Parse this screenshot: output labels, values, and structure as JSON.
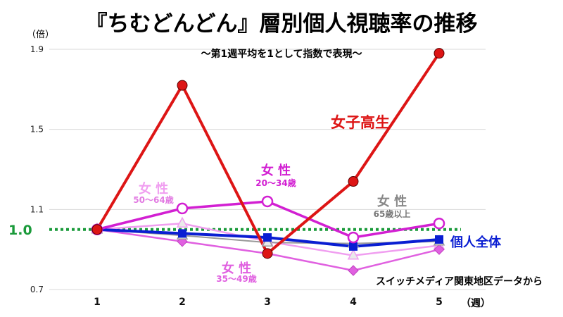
{
  "title": "『ちむどんどん』層別個人視聴率の推移",
  "subtitle": "～第1週平均を1として指数で表現～",
  "y_unit": "（倍）",
  "x_unit": "（週）",
  "source": "スイッチメディア関東地区データから",
  "colors": {
    "red": "#dd1515",
    "magenta": "#d21fd2",
    "blue": "#0a1ed2",
    "pink_light": "#f09ef0",
    "pink_mid": "#e060e0",
    "gray": "#9a9a9a",
    "baseline": "#1a9a3a"
  },
  "chart_data": {
    "type": "line",
    "x": [
      1,
      2,
      3,
      4,
      5
    ],
    "ylim": [
      0.7,
      1.9
    ],
    "yticks": [
      "0.7",
      "1.1",
      "1.5",
      "1.9"
    ],
    "baseline_label": "1.0",
    "baseline_value": 1.0,
    "grid": true,
    "series": [
      {
        "name": "女子高生",
        "values": [
          1.0,
          1.72,
          0.88,
          1.24,
          1.88
        ],
        "color": "#dd1515",
        "marker": "circle-filled"
      },
      {
        "name": "女性 20〜34歳",
        "values": [
          1.0,
          1.105,
          1.14,
          0.96,
          1.03
        ],
        "color": "#d21fd2",
        "marker": "circle-open"
      },
      {
        "name": "女性 65歳以上",
        "values": [
          1.0,
          0.97,
          0.935,
          0.93,
          0.94
        ],
        "color": "#9a9a9a",
        "marker": "triangle"
      },
      {
        "name": "女性 50〜64歳",
        "values": [
          1.0,
          1.03,
          0.94,
          0.87,
          0.92
        ],
        "color": "#f09ef0",
        "marker": "triangle"
      },
      {
        "name": "女性 35〜49歳",
        "values": [
          1.0,
          0.94,
          0.88,
          0.795,
          0.9
        ],
        "color": "#e060e0",
        "marker": "diamond"
      },
      {
        "name": "個人全体",
        "values": [
          1.0,
          0.98,
          0.96,
          0.915,
          0.95
        ],
        "color": "#0a1ed2",
        "marker": "square"
      }
    ],
    "labels": {
      "jk": "女子高生",
      "f2034_a": "女 性",
      "f2034_b": "20〜34歳",
      "f65_a": "女 性",
      "f65_b": "65歳以上",
      "f5064_a": "女 性",
      "f5064_b": "50〜64歳",
      "f3549_a": "女 性",
      "f3549_b": "35〜49歳",
      "all": "個人全体"
    }
  }
}
